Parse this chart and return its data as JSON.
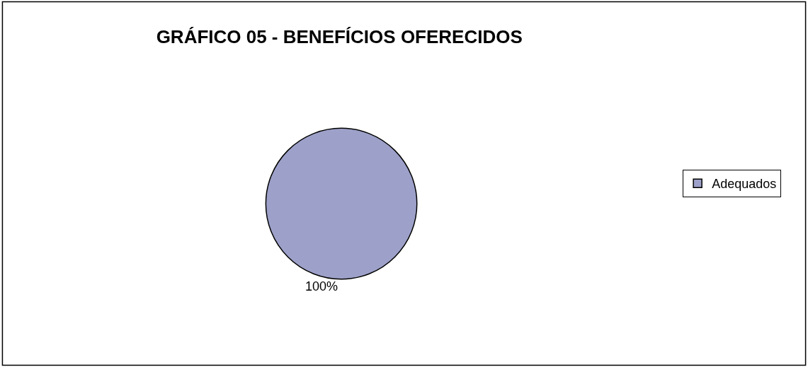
{
  "chart_data": {
    "type": "pie",
    "title": "GRÁFICO 05 - BENEFÍCIOS OFERECIDOS",
    "categories": [
      "Adequados"
    ],
    "values": [
      100
    ],
    "colors": [
      "#9da1c9"
    ],
    "value_labels": [
      "100%"
    ],
    "legend": "right"
  }
}
